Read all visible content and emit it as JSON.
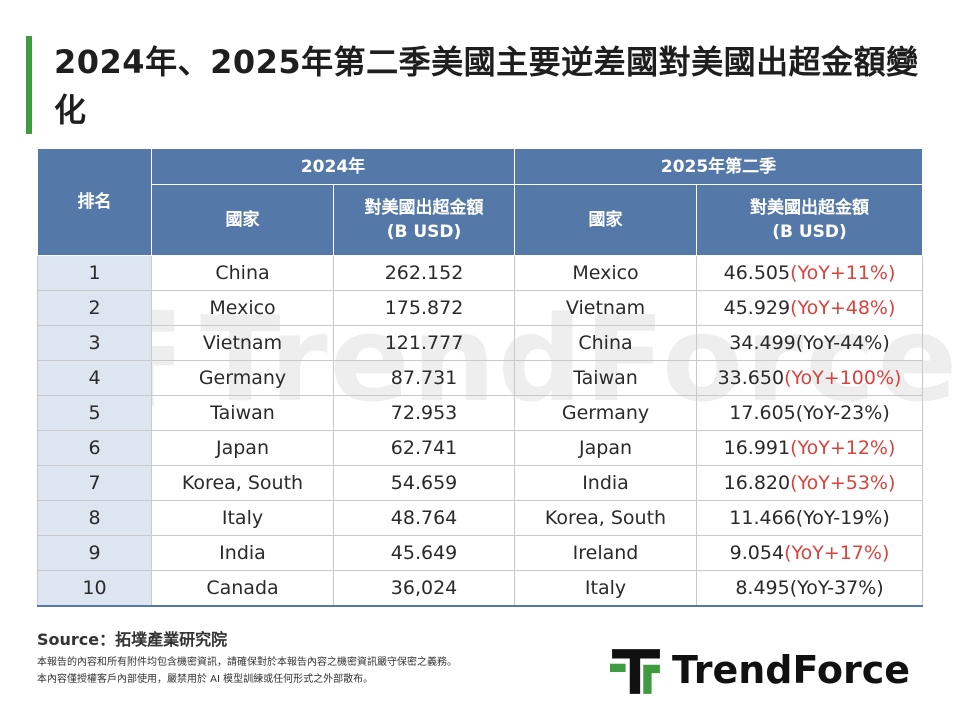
{
  "title": "2024年、2025年第二季美國主要逆差國對美國出超金額變化",
  "colors": {
    "header": "#5478a8",
    "accent_bar": "#3f9b3f",
    "highlight_red": "#d9433e",
    "rank_bg": "#dde5f0"
  },
  "chart_data": {
    "type": "table",
    "header": {
      "rank": "排名",
      "period_2024": "2024年",
      "period_2025": "2025年第二季",
      "country": "國家",
      "amount": "對美國出超金額",
      "unit": "(B USD)"
    },
    "rows": [
      {
        "rank": "1",
        "c24": "China",
        "v24": "262.152",
        "c25": "Mexico",
        "c25_red": true,
        "v25": "46.505",
        "yoy": "(YoY+11%)",
        "yoy_red": true
      },
      {
        "rank": "2",
        "c24": "Mexico",
        "v24": "175.872",
        "c25": "Vietnam",
        "c25_red": true,
        "v25": "45.929",
        "yoy": "(YoY+48%)",
        "yoy_red": true
      },
      {
        "rank": "3",
        "c24": "Vietnam",
        "v24": "121.777",
        "c25": "China",
        "c25_red": false,
        "v25": "34.499",
        "yoy": "(YoY-44%)",
        "yoy_red": false
      },
      {
        "rank": "4",
        "c24": "Germany",
        "v24": "87.731",
        "c25": "Taiwan",
        "c25_red": true,
        "v25": "33.650",
        "yoy": "(YoY+100%)",
        "yoy_red": true
      },
      {
        "rank": "5",
        "c24": "Taiwan",
        "v24": "72.953",
        "c25": "Germany",
        "c25_red": false,
        "v25": "17.605",
        "yoy": "(YoY-23%)",
        "yoy_red": false
      },
      {
        "rank": "6",
        "c24": "Japan",
        "v24": "62.741",
        "c25": "Japan",
        "c25_red": true,
        "v25": "16.991",
        "yoy": "(YoY+12%)",
        "yoy_red": true
      },
      {
        "rank": "7",
        "c24": "Korea, South",
        "v24": "54.659",
        "c25": "India",
        "c25_red": true,
        "v25": "16.820",
        "yoy": "(YoY+53%)",
        "yoy_red": true
      },
      {
        "rank": "8",
        "c24": "Italy",
        "v24": "48.764",
        "c25": "Korea, South",
        "c25_red": false,
        "v25": "11.466",
        "yoy": "(YoY-19%)",
        "yoy_red": false
      },
      {
        "rank": "9",
        "c24": "India",
        "v24": "45.649",
        "c25": "Ireland",
        "c25_red": true,
        "v25": "9.054",
        "yoy": "(YoY+17%)",
        "yoy_red": true
      },
      {
        "rank": "10",
        "c24": "Canada",
        "v24": "36,024",
        "c25": "Italy",
        "c25_red": false,
        "v25": "8.495",
        "yoy": "(YoY-37%)",
        "yoy_red": false
      }
    ]
  },
  "source": "Source：拓墣產業研究院",
  "notes": [
    "本報告的內容和所有附件均包含機密資訊，請確保對於本報告內容之機密資訊嚴守保密之義務。",
    "本內容僅授權客戶內部使用，嚴禁用於 AI 模型訓練或任何形式之外部散布。"
  ],
  "logo": {
    "text": "TrendForce"
  },
  "watermark": {
    "text": "TrendForce"
  }
}
